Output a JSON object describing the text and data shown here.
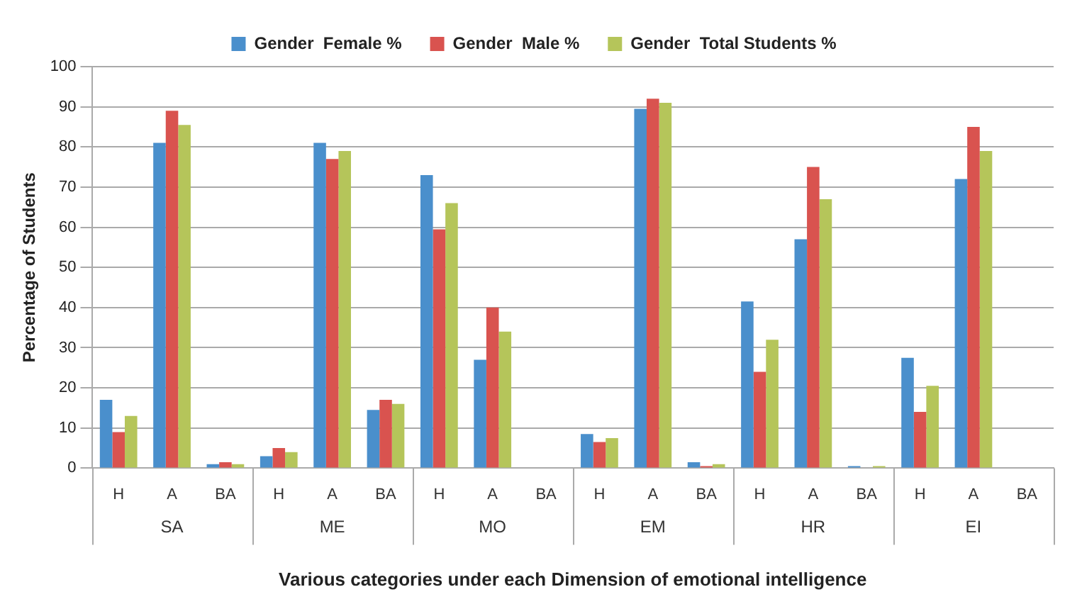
{
  "chart_data": {
    "type": "bar",
    "xlabel": "Various categories under each Dimension of emotional intelligence",
    "ylabel": "Percentage of Students",
    "categories": [
      "H",
      "A",
      "BA",
      "H",
      "A",
      "BA",
      "H",
      "A",
      "BA",
      "H",
      "A",
      "BA",
      "H",
      "A",
      "BA",
      "H",
      "A",
      "BA"
    ],
    "annotations": [
      "SA",
      "ME",
      "MO",
      "EM",
      "HR",
      "EI"
    ],
    "series": [
      {
        "name": "Gender  Female %",
        "color": "#4a8fcc",
        "values": [
          17,
          81,
          1,
          3,
          81,
          14.5,
          73,
          27,
          0,
          8.5,
          89.5,
          1.5,
          41.5,
          57,
          0.5,
          27.5,
          72,
          0
        ]
      },
      {
        "name": "Gender  Male %",
        "color": "#d9534f",
        "values": [
          9,
          89,
          1.5,
          5,
          77,
          17,
          59.5,
          40,
          0,
          6.5,
          92,
          0.5,
          24,
          75,
          0,
          14,
          85,
          0
        ]
      },
      {
        "name": "Gender  Total Students %",
        "color": "#b5c55a",
        "values": [
          13,
          85.5,
          1,
          4,
          79,
          16,
          66,
          34,
          0,
          7.5,
          91,
          1,
          32,
          67,
          0.5,
          20.5,
          79,
          0
        ]
      }
    ],
    "ylim": [
      0,
      100
    ],
    "yticks": [
      0,
      10,
      20,
      30,
      40,
      50,
      60,
      70,
      80,
      90,
      100
    ],
    "grid": "y",
    "legend": "top"
  }
}
